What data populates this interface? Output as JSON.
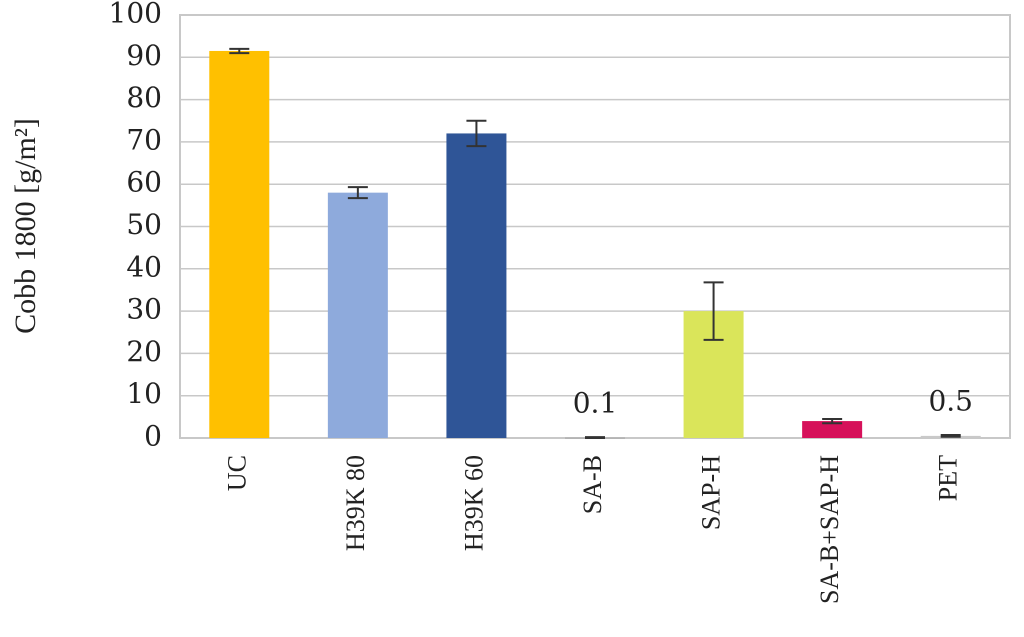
{
  "chart_data": {
    "type": "bar",
    "y_label": "Cobb 1800 [g/m²]",
    "categories": [
      "UC",
      "H39K 80",
      "H39K 60",
      "SA-B",
      "SAP-H",
      "SA-B+SAP-H",
      "PET"
    ],
    "values": [
      91.5,
      58,
      72,
      0.1,
      30,
      4,
      0.5
    ],
    "errors": [
      0.5,
      1.3,
      3,
      0.1,
      6.8,
      0.5,
      0.2
    ],
    "value_labels": [
      null,
      null,
      null,
      "0.1",
      null,
      null,
      "0.5"
    ],
    "colors": [
      "#ffc000",
      "#8eaadc",
      "#2f5597",
      "#a5a5a5",
      "#dae55a",
      "#d6115a",
      "#c9c9c9"
    ],
    "ylim": [
      0,
      100
    ],
    "yticks": [
      0,
      10,
      20,
      30,
      40,
      50,
      60,
      70,
      80,
      90,
      100
    ],
    "grid": true
  }
}
